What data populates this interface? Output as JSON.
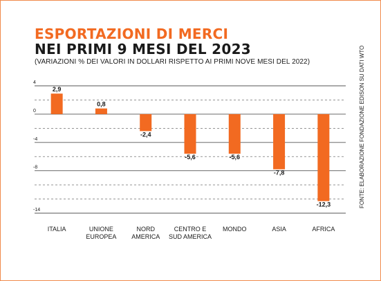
{
  "chart_data": {
    "type": "bar",
    "title": "ESPORTAZIONI DI MERCI",
    "title_line2": "NEI PRIMI 9 MESI DEL 2023",
    "subtitle": "(VARIAZIONI % DEI VALORI IN DOLLARI RISPETTO AI PRIMI NOVE MESI DEL 2022)",
    "source": "FONTE: ELABORAZIONE FONDAZIONE EDISON SU DATI WTO",
    "categories": [
      [
        "ITALIA"
      ],
      [
        "UNIONE",
        "EUROPEA"
      ],
      [
        "NORD",
        "AMERICA"
      ],
      [
        "CENTRO E",
        "SUD AMERICA"
      ],
      [
        "MONDO"
      ],
      [
        "ASIA"
      ],
      [
        "AFRICA"
      ]
    ],
    "values": [
      2.9,
      0.8,
      -2.4,
      -5.6,
      -5.6,
      -7.8,
      -12.3
    ],
    "value_labels": [
      "2,9",
      "0,8",
      "-2,4",
      "-5,6",
      "-5,6",
      "-7,8",
      "-12,3"
    ],
    "ylim": [
      -14,
      4
    ],
    "y_ticks": [
      4,
      0,
      -4,
      -8,
      -14
    ],
    "y_tick_labels": [
      "4",
      "0",
      "-4",
      "-8",
      "-14"
    ],
    "grid": true,
    "bar_color": "#f26a21",
    "grid_color": "#555555"
  }
}
